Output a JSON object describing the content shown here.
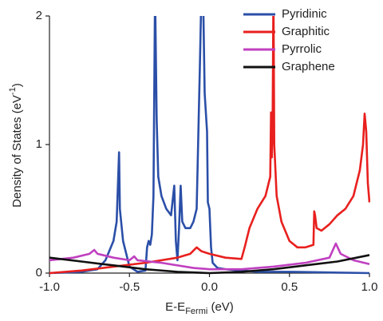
{
  "chart_data": {
    "type": "line",
    "x_label": {
      "main": "E-E",
      "sub": "Fermi",
      "tail": " (eV)"
    },
    "y_label": {
      "main": "Density of States (eV",
      "sup": "-1",
      "tail": ")"
    },
    "xlim": [
      -1,
      1
    ],
    "ylim": [
      0,
      2
    ],
    "xticks": [
      {
        "value": -1,
        "label": "-1.0"
      },
      -0.5,
      {
        "value": 0,
        "label": "0.0"
      },
      0.5,
      {
        "value": 1,
        "label": "1.0"
      }
    ],
    "yticks": [
      0,
      1,
      2
    ],
    "legend": "top-right",
    "series": [
      {
        "name": "Pyridinic",
        "color": "#2b4fa8",
        "x": [
          -1,
          -0.8,
          -0.7,
          -0.65,
          -0.6,
          -0.58,
          -0.565,
          -0.56,
          -0.54,
          -0.5,
          -0.45,
          -0.4,
          -0.39,
          -0.38,
          -0.37,
          -0.36,
          -0.35,
          -0.34,
          -0.33,
          -0.32,
          -0.3,
          -0.27,
          -0.24,
          -0.22,
          -0.21,
          -0.2,
          -0.19,
          -0.18,
          -0.17,
          -0.15,
          -0.12,
          -0.1,
          -0.08,
          -0.06,
          -0.05,
          -0.04,
          -0.03,
          -0.02,
          -0.015,
          -0.01,
          0,
          0.01,
          0.02,
          0.05,
          0.1,
          0.2,
          0.3,
          0.5,
          1
        ],
        "values": [
          0,
          0.01,
          0.03,
          0.1,
          0.25,
          0.4,
          0.94,
          0.5,
          0.25,
          0.05,
          0.01,
          0.02,
          0.2,
          0.25,
          0.22,
          0.3,
          0.6,
          2.2,
          1.2,
          0.75,
          0.6,
          0.5,
          0.45,
          0.68,
          0.25,
          0.1,
          0.35,
          0.68,
          0.4,
          0.35,
          0.35,
          0.4,
          0.5,
          1.6,
          2.2,
          2.2,
          1.4,
          1.2,
          1.1,
          0.55,
          0.5,
          0.2,
          0.08,
          0.04,
          0.03,
          0.02,
          0.01,
          0.01,
          0
        ]
      },
      {
        "name": "Graphitic",
        "color": "#e8201e",
        "x": [
          -1,
          -0.8,
          -0.6,
          -0.4,
          -0.2,
          -0.12,
          -0.08,
          -0.05,
          0,
          0.1,
          0.2,
          0.22,
          0.25,
          0.3,
          0.35,
          0.38,
          0.385,
          0.39,
          0.395,
          0.4,
          0.405,
          0.42,
          0.45,
          0.5,
          0.55,
          0.6,
          0.65,
          0.655,
          0.66,
          0.67,
          0.7,
          0.75,
          0.8,
          0.85,
          0.9,
          0.94,
          0.96,
          0.97,
          0.98,
          0.99,
          1
        ],
        "values": [
          0,
          0.02,
          0.05,
          0.08,
          0.12,
          0.15,
          0.2,
          0.17,
          0.15,
          0.12,
          0.11,
          0.2,
          0.35,
          0.5,
          0.6,
          0.75,
          1.25,
          0.9,
          1.2,
          2.2,
          1,
          0.6,
          0.4,
          0.25,
          0.2,
          0.2,
          0.22,
          0.48,
          0.45,
          0.35,
          0.33,
          0.38,
          0.45,
          0.5,
          0.6,
          0.8,
          1,
          1.24,
          1.1,
          0.7,
          0.55
        ]
      },
      {
        "name": "Pyrrolic",
        "color": "#c040c0",
        "x": [
          -1,
          -0.85,
          -0.75,
          -0.72,
          -0.7,
          -0.6,
          -0.5,
          -0.47,
          -0.45,
          -0.3,
          -0.1,
          0,
          0.2,
          0.4,
          0.6,
          0.75,
          0.79,
          0.82,
          0.9,
          1
        ],
        "values": [
          0.1,
          0.12,
          0.15,
          0.18,
          0.15,
          0.12,
          0.1,
          0.13,
          0.1,
          0.08,
          0.04,
          0.03,
          0.03,
          0.05,
          0.08,
          0.12,
          0.23,
          0.15,
          0.1,
          0.07
        ]
      },
      {
        "name": "Graphene",
        "color": "#111111",
        "x": [
          -1,
          -0.8,
          -0.6,
          -0.4,
          -0.2,
          0,
          0.2,
          0.4,
          0.6,
          0.8,
          1
        ],
        "values": [
          0.12,
          0.09,
          0.06,
          0.03,
          0.01,
          0,
          0.01,
          0.03,
          0.06,
          0.09,
          0.14
        ]
      }
    ]
  }
}
